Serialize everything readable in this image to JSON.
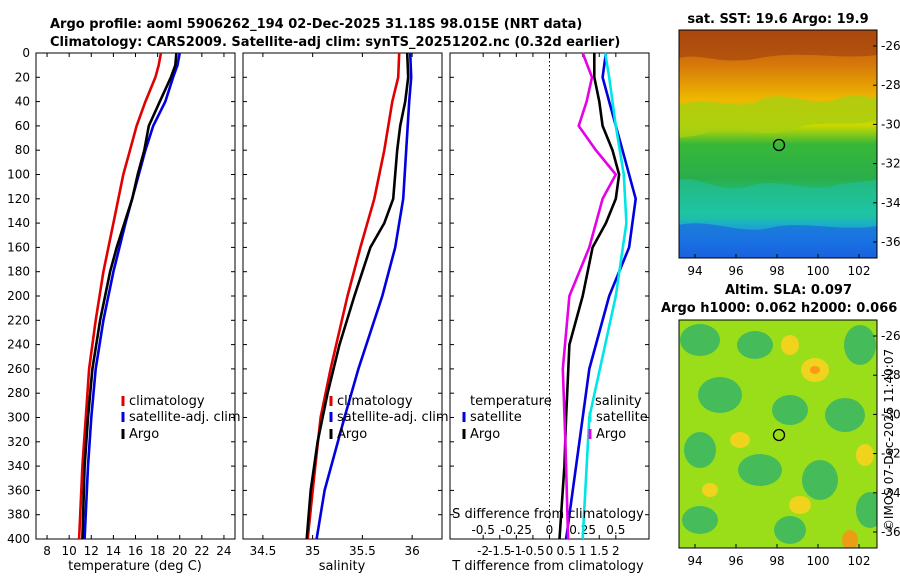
{
  "title": {
    "line1": "Argo profile: aoml 5906262_194 02-Dec-2025 31.18S 98.015E (NRT data)",
    "line2": "Climatology: CARS2009. Satellite-adj clim: synTS_20251202.nc (0.32d earlier)"
  },
  "colors": {
    "clim": "#e00000",
    "sat": "#0000e0",
    "argo": "#000000",
    "sat_s": "#00e6e6",
    "argo_s": "#e600e6"
  },
  "chart_data": [
    {
      "type": "line",
      "id": "temperature",
      "xlabel": "temperature (deg C)",
      "xlim": [
        7,
        25
      ],
      "ylim": [
        0,
        400
      ],
      "xticks": [
        "8",
        "10",
        "12",
        "14",
        "16",
        "18",
        "20",
        "22",
        "24"
      ],
      "xtick_values": [
        8,
        10,
        12,
        14,
        16,
        18,
        20,
        22,
        24
      ],
      "yticks": [
        "0",
        "20",
        "40",
        "60",
        "80",
        "100",
        "120",
        "140",
        "160",
        "180",
        "200",
        "220",
        "240",
        "260",
        "280",
        "300",
        "320",
        "340",
        "360",
        "380",
        "400"
      ],
      "legend": [
        "climatology",
        "satellite-adj. clim",
        "Argo"
      ],
      "series": [
        {
          "name": "climatology",
          "depth": [
            0,
            10,
            20,
            40,
            60,
            80,
            100,
            140,
            180,
            220,
            260,
            300,
            340,
            400
          ],
          "values": [
            18.3,
            18.1,
            17.8,
            16.9,
            16.1,
            15.5,
            14.9,
            14.0,
            13.1,
            12.4,
            11.8,
            11.5,
            11.2,
            10.9
          ]
        },
        {
          "name": "satellite-adj. clim",
          "depth": [
            0,
            10,
            20,
            40,
            60,
            80,
            100,
            140,
            180,
            220,
            260,
            300,
            340,
            400
          ],
          "values": [
            20.0,
            19.8,
            19.4,
            18.7,
            17.6,
            16.9,
            16.3,
            15.1,
            14.0,
            13.1,
            12.4,
            12.0,
            11.7,
            11.4
          ]
        },
        {
          "name": "Argo",
          "depth": [
            0,
            10,
            20,
            40,
            60,
            80,
            100,
            120,
            140,
            160,
            180,
            220,
            260,
            300,
            340,
            400
          ],
          "values": [
            19.7,
            19.6,
            19.2,
            18.2,
            17.2,
            16.8,
            16.2,
            15.7,
            15.0,
            14.3,
            13.7,
            12.8,
            12.1,
            11.7,
            11.4,
            11.2
          ]
        }
      ]
    },
    {
      "type": "line",
      "id": "salinity",
      "xlabel": "salinity",
      "xlim": [
        34.3,
        36.3
      ],
      "ylim": [
        0,
        400
      ],
      "xticks": [
        "34.5",
        "35",
        "35.5",
        "36"
      ],
      "xtick_values": [
        34.5,
        35,
        35.5,
        36
      ],
      "legend": [
        "climatology",
        "satellite-adj. clim",
        "Argo"
      ],
      "series": [
        {
          "name": "climatology",
          "depth": [
            0,
            20,
            40,
            80,
            120,
            160,
            200,
            260,
            300,
            360,
            400
          ],
          "values": [
            35.87,
            35.86,
            35.8,
            35.72,
            35.62,
            35.48,
            35.35,
            35.18,
            35.08,
            35.0,
            34.95
          ]
        },
        {
          "name": "satellite-adj. clim",
          "depth": [
            0,
            20,
            40,
            80,
            120,
            160,
            200,
            260,
            300,
            360,
            400
          ],
          "values": [
            35.98,
            35.99,
            35.97,
            35.94,
            35.91,
            35.83,
            35.7,
            35.46,
            35.32,
            35.12,
            35.04
          ]
        },
        {
          "name": "Argo",
          "depth": [
            0,
            20,
            40,
            60,
            80,
            100,
            120,
            140,
            160,
            180,
            200,
            240,
            280,
            320,
            360,
            400
          ],
          "values": [
            35.95,
            35.96,
            35.93,
            35.88,
            35.85,
            35.83,
            35.81,
            35.72,
            35.58,
            35.5,
            35.42,
            35.27,
            35.15,
            35.05,
            34.98,
            34.94
          ]
        }
      ]
    },
    {
      "type": "line",
      "id": "difference",
      "xlabel": "T difference from climatology",
      "xlabel_top": "S difference from climatology",
      "xlim": [
        -3,
        3
      ],
      "ylim": [
        0,
        400
      ],
      "xticks": [
        "-2",
        "-1.5",
        "-1",
        "-0.5",
        "0",
        "0.5",
        "1",
        "1.5",
        "2"
      ],
      "xtick_values": [
        -2,
        -1.5,
        -1,
        -0.5,
        0,
        0.5,
        1,
        1.5,
        2
      ],
      "top_ticks": [
        "-0.5",
        "-0.25",
        "0",
        "0.25",
        "0.5"
      ],
      "top_tick_values": [
        -0.5,
        -0.25,
        0,
        0.25,
        0.5
      ],
      "legend_t": {
        "title": "temperature",
        "items": [
          "satellite",
          "Argo"
        ]
      },
      "legend_s": {
        "title": "salinity",
        "items": [
          "satellite",
          "Argo"
        ]
      },
      "series": [
        {
          "name": "T satellite",
          "depth": [
            0,
            20,
            40,
            80,
            120,
            160,
            200,
            260,
            320,
            400
          ],
          "values": [
            1.7,
            1.6,
            1.8,
            2.2,
            2.6,
            2.4,
            1.8,
            1.2,
            0.9,
            0.5
          ]
        },
        {
          "name": "T Argo",
          "depth": [
            0,
            20,
            40,
            60,
            80,
            100,
            120,
            140,
            160,
            200,
            240,
            300,
            340,
            400
          ],
          "values": [
            1.35,
            1.35,
            1.5,
            1.6,
            1.9,
            2.1,
            2.0,
            1.7,
            1.3,
            1.0,
            0.6,
            0.5,
            0.45,
            0.3
          ]
        },
        {
          "name": "S satellite",
          "depth": [
            0,
            20,
            60,
            100,
            140,
            200,
            240,
            300,
            400
          ],
          "values": [
            0.42,
            0.45,
            0.5,
            0.56,
            0.58,
            0.5,
            0.42,
            0.3,
            0.25
          ]
        },
        {
          "name": "S Argo",
          "depth": [
            0,
            20,
            40,
            60,
            80,
            100,
            120,
            160,
            200,
            260,
            320,
            400
          ],
          "values": [
            0.25,
            0.32,
            0.28,
            0.22,
            0.35,
            0.5,
            0.4,
            0.3,
            0.15,
            0.1,
            0.12,
            0.14
          ]
        }
      ]
    }
  ],
  "maps": {
    "sst": {
      "title": "sat. SST: 19.6 Argo: 19.9",
      "xticks": [
        "94",
        "96",
        "98",
        "100",
        "102"
      ],
      "yticks": [
        "-26",
        "-28",
        "-30",
        "-32",
        "-34",
        "-36"
      ]
    },
    "sla": {
      "title1": "Altim. SLA: 0.097",
      "title2": "Argo h1000: 0.062 h2000: 0.066",
      "xticks": [
        "94",
        "96",
        "98",
        "100",
        "102"
      ],
      "yticks": [
        "-26",
        "-28",
        "-30",
        "-32",
        "-34",
        "-36"
      ]
    }
  },
  "credit": "©IMOS 07-Dec-2025 11:40:07"
}
